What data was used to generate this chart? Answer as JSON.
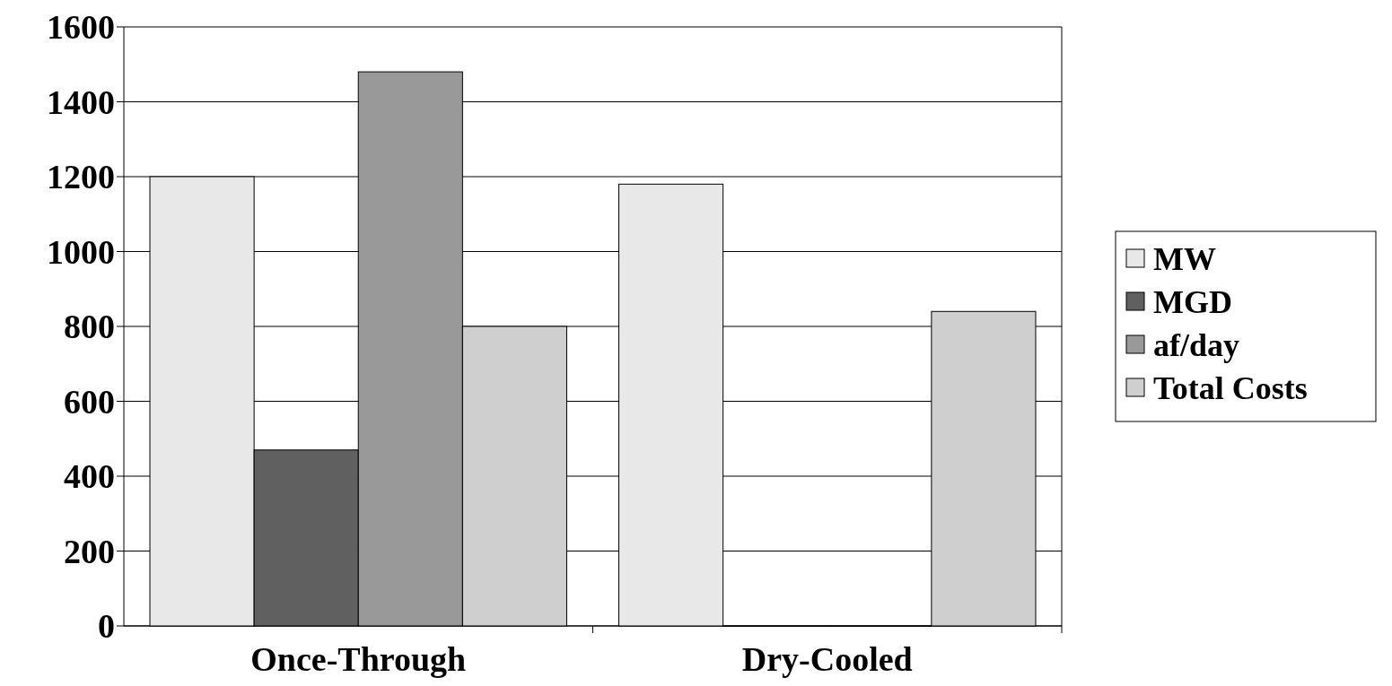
{
  "chart_data": {
    "type": "bar",
    "categories": [
      "Once-Through",
      "Dry-Cooled"
    ],
    "series": [
      {
        "name": "MW",
        "color": "#e8e8e8",
        "values": [
          1200,
          1180
        ]
      },
      {
        "name": "MGD",
        "color": "#606060",
        "values": [
          470,
          0
        ]
      },
      {
        "name": "af/day",
        "color": "#999999",
        "values": [
          1480,
          0
        ]
      },
      {
        "name": "Total Costs",
        "color": "#cfcfcf",
        "values": [
          800,
          840
        ]
      }
    ],
    "ylim": [
      0,
      1600
    ],
    "yticks": [
      0,
      200,
      400,
      600,
      800,
      1000,
      1200,
      1400,
      1600
    ],
    "grid": "y",
    "legend": "right"
  }
}
